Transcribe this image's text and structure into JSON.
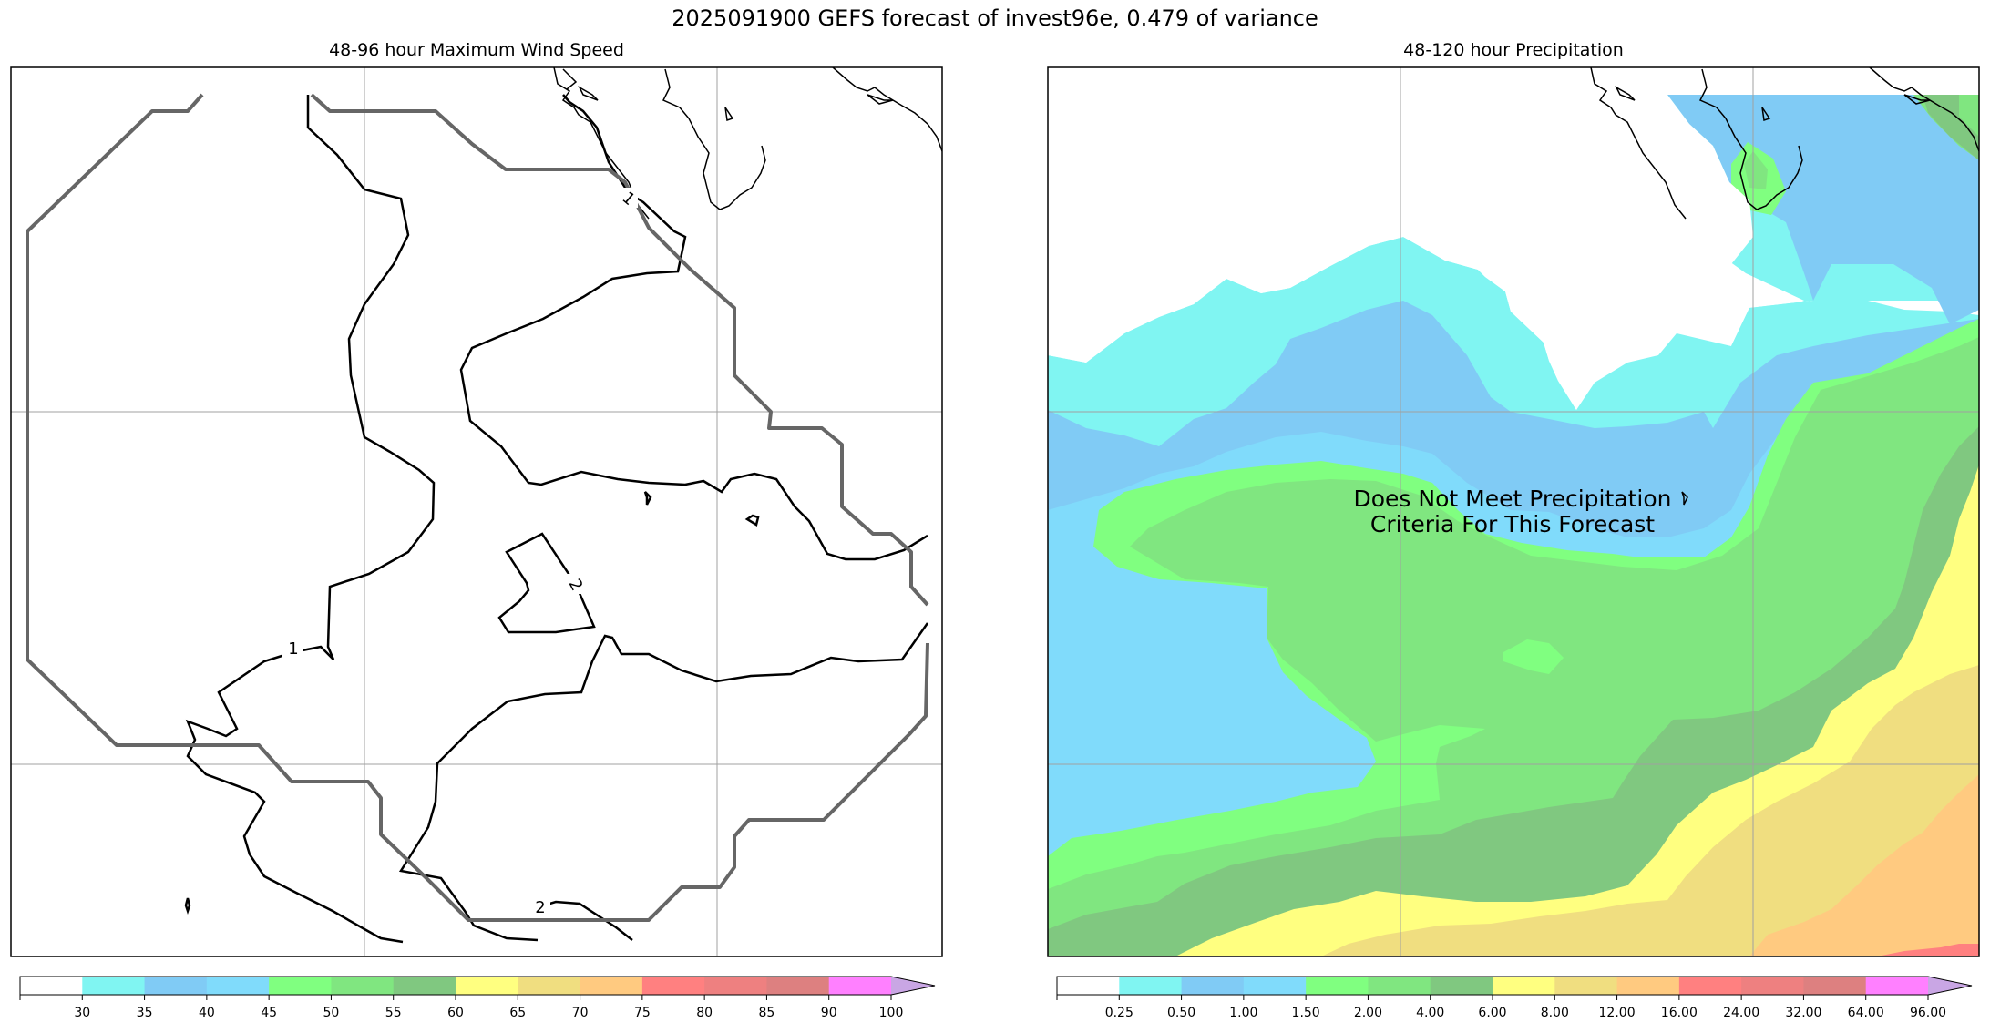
{
  "title": "2025091900 GEFS forecast of invest96e, 0.479 of variance",
  "chart_data": [
    {
      "type": "heatmap",
      "title": "48-96 hour Maximum Wind Speed",
      "xlabel": "",
      "ylabel": "",
      "grid": true,
      "colorbar": {
        "levels": [
          "30",
          "35",
          "40",
          "45",
          "50",
          "55",
          "60",
          "65",
          "70",
          "75",
          "80",
          "85",
          "90",
          "100"
        ],
        "colors": [
          "#ffffff",
          "#80f5f2",
          "#80cbf5",
          "#80dbfb",
          "#80ff80",
          "#80e680",
          "#80c880",
          "#ffff80",
          "#f0de80",
          "#ffca80",
          "#ff8080",
          "#ee8080",
          "#dd8080",
          "#ff80ff",
          "#c9a6e4"
        ],
        "extend": "max"
      },
      "contours": [
        {
          "label": "1",
          "level": 1
        },
        {
          "label": "1",
          "level": 1
        },
        {
          "label": "2",
          "level": 2
        },
        {
          "label": "2",
          "level": 2
        }
      ]
    },
    {
      "type": "heatmap",
      "title": "48-120 hour Precipitation",
      "xlabel": "",
      "ylabel": "",
      "grid": true,
      "annotation": "Does Not Meet Precipitation\nCriteria For This Forecast",
      "annotation_lines": [
        "Does Not Meet Precipitation",
        "Criteria For This Forecast"
      ],
      "colorbar": {
        "levels": [
          "0.25",
          "0.50",
          "1.00",
          "1.50",
          "2.00",
          "4.00",
          "6.00",
          "8.00",
          "12.00",
          "16.00",
          "24.00",
          "32.00",
          "64.00",
          "96.00"
        ],
        "colors": [
          "#ffffff",
          "#80f5f2",
          "#80cbf5",
          "#80dbfb",
          "#80ff80",
          "#80e680",
          "#80c880",
          "#ffff80",
          "#f0de80",
          "#ffca80",
          "#ff8080",
          "#ee8080",
          "#dd8080",
          "#ff80ff",
          "#c9a6e4"
        ],
        "extend": "max"
      }
    }
  ],
  "colors": {
    "contour": "#000000",
    "cone": "#666666",
    "coastline": "#000000",
    "grid": "#a0a0a0"
  }
}
